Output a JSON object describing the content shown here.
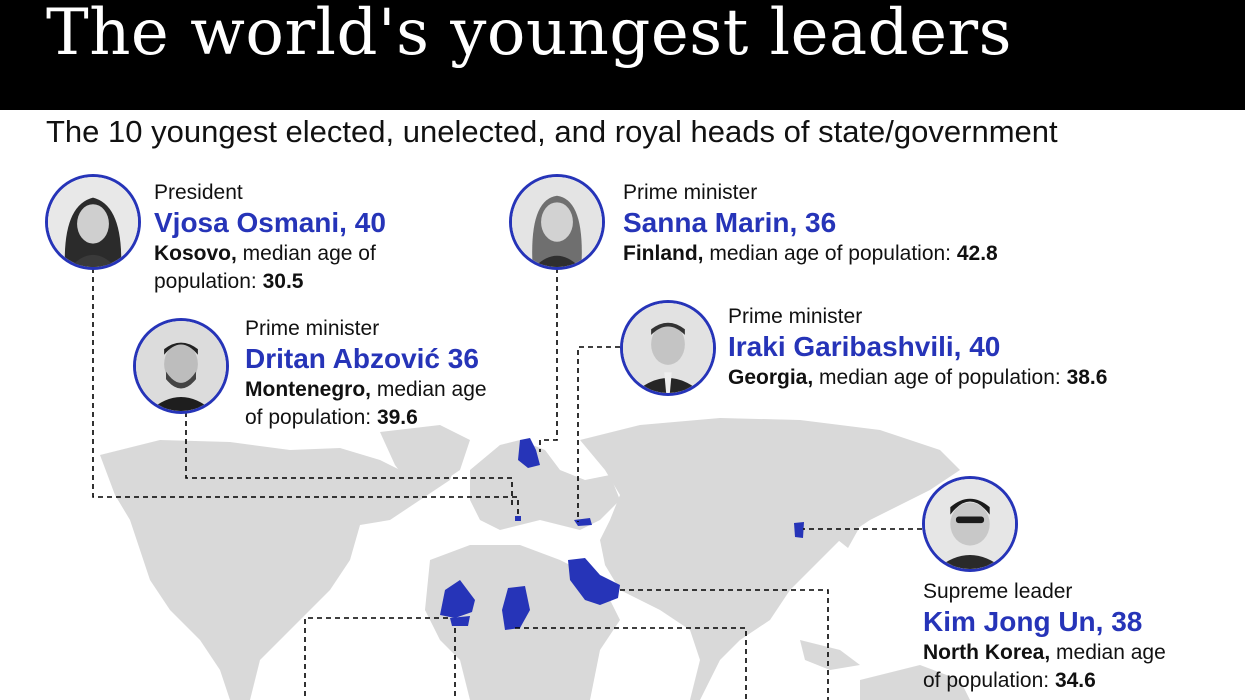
{
  "title": "The world's youngest leaders",
  "subtitle": "The 10 youngest elected, unelected, and royal heads of state/government",
  "colors": {
    "accent": "#2634b8",
    "land": "#d9d9d9",
    "header": "#000000"
  },
  "leaders": [
    {
      "role": "President",
      "name": "Vjosa Osmani, 40",
      "country": "Kosovo,",
      "median_label": " median age of",
      "median_label2": "population: ",
      "median_age": "30.5"
    },
    {
      "role": "Prime minister",
      "name": "Dritan Abzović 36",
      "country": "Montenegro,",
      "median_label": " median age",
      "median_label2": "of population: ",
      "median_age": "39.6"
    },
    {
      "role": "Prime minister",
      "name": "Sanna Marin, 36",
      "country": "Finland,",
      "median_label": " median age of population: ",
      "median_age": "42.8"
    },
    {
      "role": "Prime minister",
      "name": "Iraki Garibashvili, 40",
      "country": "Georgia,",
      "median_label": " median age of population: ",
      "median_age": "38.6"
    },
    {
      "role": "Supreme leader",
      "name": "Kim Jong Un, 38",
      "country": "North Korea,",
      "median_label": " median age",
      "median_label2": "of population: ",
      "median_age": "34.6"
    }
  ]
}
